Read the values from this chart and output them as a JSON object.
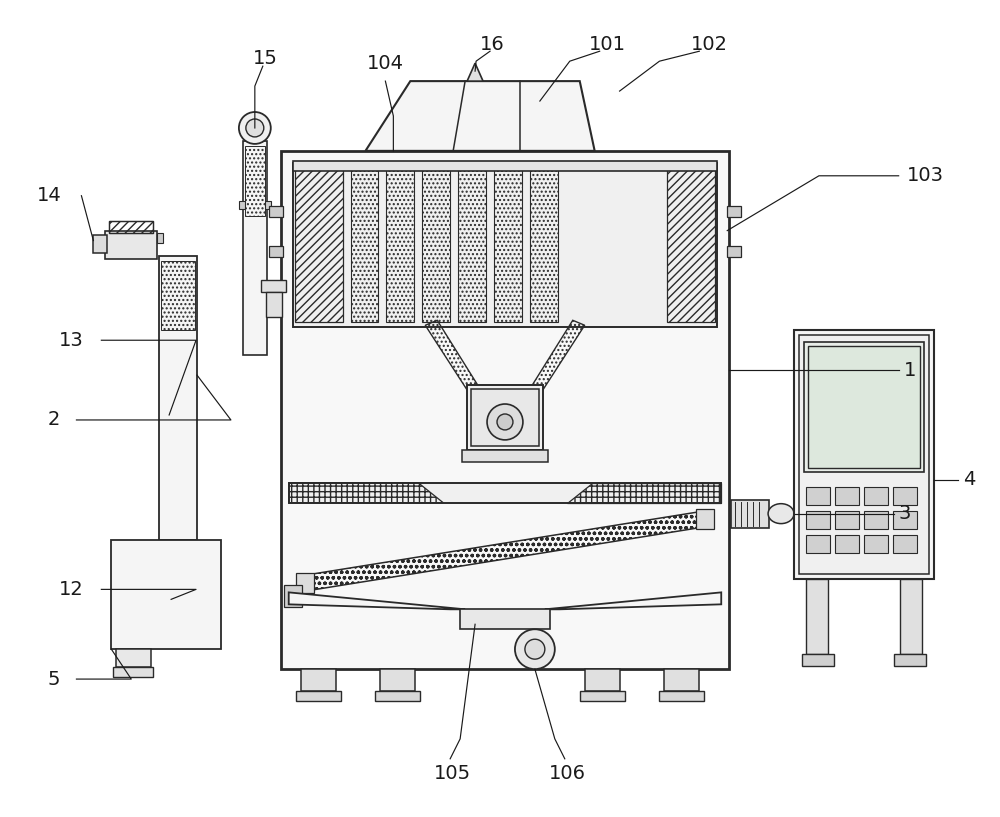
{
  "bg_color": "#ffffff",
  "line_color": "#2a2a2a",
  "figsize": [
    10.0,
    8.17
  ],
  "dpi": 100
}
